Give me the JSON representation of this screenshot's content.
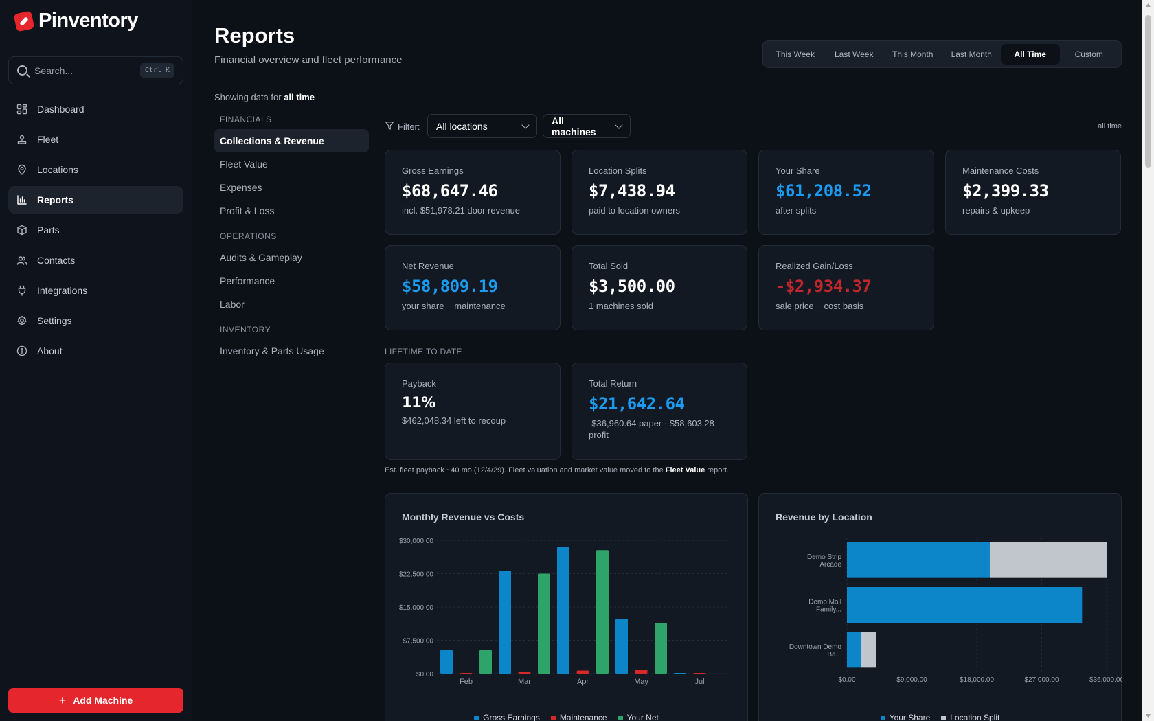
{
  "app": {
    "name": "Pinventory"
  },
  "search": {
    "placeholder": "Search...",
    "shortcut": "Ctrl K"
  },
  "nav": [
    {
      "label": "Dashboard",
      "icon": "grid-icon",
      "active": false
    },
    {
      "label": "Fleet",
      "icon": "joystick-icon",
      "active": false
    },
    {
      "label": "Locations",
      "icon": "map-pin-icon",
      "active": false
    },
    {
      "label": "Reports",
      "icon": "bar-chart-icon",
      "active": true
    },
    {
      "label": "Parts",
      "icon": "box-icon",
      "active": false
    },
    {
      "label": "Contacts",
      "icon": "users-icon",
      "active": false
    },
    {
      "label": "Integrations",
      "icon": "plug-icon",
      "active": false
    },
    {
      "label": "Settings",
      "icon": "gear-icon",
      "active": false
    },
    {
      "label": "About",
      "icon": "info-icon",
      "active": false
    }
  ],
  "add_machine": "Add Machine",
  "header": {
    "title": "Reports",
    "subtitle": "Financial overview and fleet performance"
  },
  "range_tabs": [
    {
      "label": "This Week",
      "active": false
    },
    {
      "label": "Last Week",
      "active": false
    },
    {
      "label": "This Month",
      "active": false
    },
    {
      "label": "Last Month",
      "active": false
    },
    {
      "label": "All Time",
      "active": true
    },
    {
      "label": "Custom",
      "active": false
    }
  ],
  "showing": {
    "prefix": "Showing data for ",
    "value": "all time"
  },
  "report_nav": {
    "groups": [
      {
        "title": "FINANCIALS",
        "items": [
          {
            "label": "Collections & Revenue",
            "active": true
          },
          {
            "label": "Fleet Value",
            "active": false
          },
          {
            "label": "Expenses",
            "active": false
          },
          {
            "label": "Profit & Loss",
            "active": false
          }
        ]
      },
      {
        "title": "OPERATIONS",
        "items": [
          {
            "label": "Audits & Gameplay",
            "active": false
          },
          {
            "label": "Performance",
            "active": false
          },
          {
            "label": "Labor",
            "active": false
          }
        ]
      },
      {
        "title": "INVENTORY",
        "items": [
          {
            "label": "Inventory & Parts Usage",
            "active": false
          }
        ]
      }
    ]
  },
  "filter": {
    "label": "Filter:",
    "location": "All locations",
    "machine": "All machines",
    "scope": "all time"
  },
  "cards": {
    "gross": {
      "label": "Gross Earnings",
      "value": "$68,647.46",
      "note": "incl. $51,978.21 door revenue"
    },
    "splits": {
      "label": "Location Splits",
      "value": "$7,438.94",
      "note": "paid to location owners"
    },
    "share": {
      "label": "Your Share",
      "value": "$61,208.52",
      "note": "after splits"
    },
    "maint": {
      "label": "Maintenance Costs",
      "value": "$2,399.33",
      "note": "repairs & upkeep"
    },
    "net": {
      "label": "Net Revenue",
      "value": "$58,809.19",
      "note": "your share − maintenance"
    },
    "sold": {
      "label": "Total Sold",
      "value": "$3,500.00",
      "note": "1 machines sold"
    },
    "gain": {
      "label": "Realized Gain/Loss",
      "value": "-$2,934.37",
      "note": "sale price − cost basis"
    }
  },
  "lifetime": {
    "title": "LIFETIME TO DATE",
    "payback": {
      "label": "Payback",
      "value": "11%",
      "note": "$462,048.34 left to recoup"
    },
    "total_return": {
      "label": "Total Return",
      "value": "$21,642.64",
      "note": "-$36,960.64 paper · $58,603.28 profit"
    }
  },
  "footnote": {
    "prefix": "Est. fleet payback ~40 mo (12/4/29). Fleet valuation and market value moved to the ",
    "link": "Fleet Value",
    "suffix": " report."
  },
  "colors": {
    "blue": "#0d86c9",
    "red": "#d62828",
    "green": "#2ea36a",
    "gray": "#c1c6cc",
    "accent": "#e5262d"
  },
  "chart_data": [
    {
      "type": "bar",
      "title": "Monthly Revenue vs Costs",
      "categories": [
        "Feb",
        "Mar",
        "Apr",
        "May",
        "Jul"
      ],
      "yticks": [
        "$0.00",
        "$7,500.00",
        "$15,000.00",
        "$22,500.00",
        "$30,000.00"
      ],
      "ylim": [
        0,
        30000
      ],
      "series": [
        {
          "name": "Gross Earnings",
          "color": "#0d86c9",
          "values": [
            5300,
            23200,
            28500,
            12300,
            100
          ]
        },
        {
          "name": "Maintenance",
          "color": "#d62828",
          "values": [
            100,
            400,
            700,
            900,
            150
          ]
        },
        {
          "name": "Your Net",
          "color": "#2ea36a",
          "values": [
            5300,
            22500,
            27800,
            11400,
            0
          ]
        }
      ],
      "grid": true,
      "legend": "bottom"
    },
    {
      "type": "bar",
      "orientation": "horizontal",
      "stacked": true,
      "title": "Revenue by Location",
      "categories": [
        "Demo Strip Arcade",
        "Demo Mall Family...",
        "Downtown Demo Ba..."
      ],
      "xticks": [
        "$0.00",
        "$9,000.00",
        "$18,000.00",
        "$27,000.00",
        "$36,000.00"
      ],
      "xlim": [
        0,
        36000
      ],
      "series": [
        {
          "name": "Your Share",
          "color": "#0d86c9",
          "values": [
            19800,
            32600,
            2000
          ]
        },
        {
          "name": "Location Split",
          "color": "#c1c6cc",
          "values": [
            16200,
            0,
            2000
          ]
        }
      ],
      "grid": true,
      "legend": "bottom"
    }
  ]
}
